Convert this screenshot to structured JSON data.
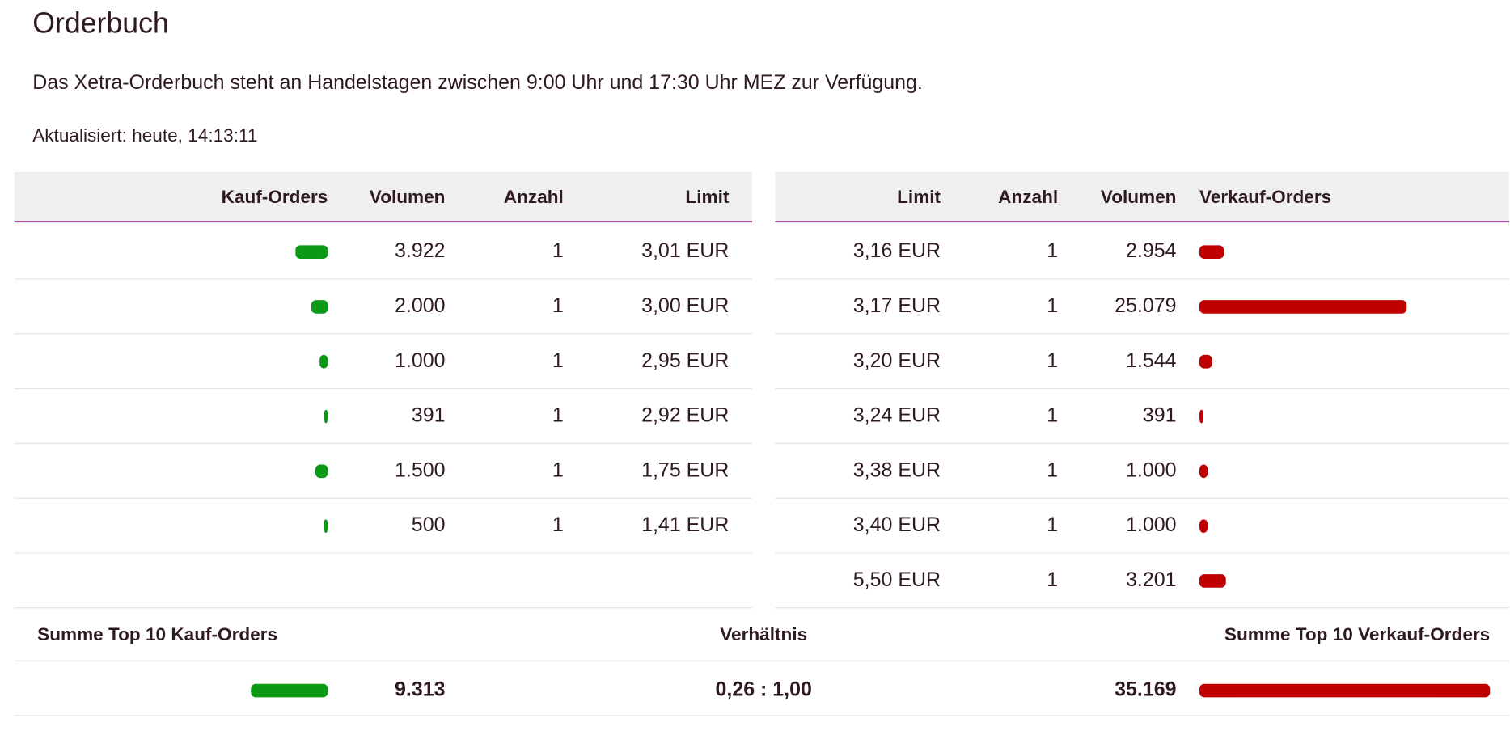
{
  "title": "Orderbuch",
  "description": "Das Xetra-Orderbuch steht an Handelstagen zwischen 9:00 Uhr und 17:30 Uhr MEZ zur Verfügung.",
  "updated": "Aktualisiert: heute, 14:13:11",
  "buy_table": {
    "columns": [
      "Kauf-Orders",
      "Volumen",
      "Anzahl",
      "Limit"
    ],
    "rows": [
      {
        "volume": {
          "value": 3922,
          "label": "3.922"
        },
        "count": 1,
        "limit": "3,01 EUR"
      },
      {
        "volume": {
          "value": 2000,
          "label": "2.000"
        },
        "count": 1,
        "limit": "3,00 EUR"
      },
      {
        "volume": {
          "value": 1000,
          "label": "1.000"
        },
        "count": 1,
        "limit": "2,95 EUR"
      },
      {
        "volume": 391,
        "count": 1,
        "limit": "2,92 EUR"
      },
      {
        "volume": {
          "value": 1500,
          "label": "1.500"
        },
        "count": 1,
        "limit": "1,75 EUR"
      },
      {
        "volume": 500,
        "count": 1,
        "limit": "1,41 EUR"
      }
    ]
  },
  "sell_table": {
    "columns": [
      "Limit",
      "Anzahl",
      "Volumen",
      "Verkauf-Orders"
    ],
    "rows": [
      {
        "limit": "3,16 EUR",
        "count": 1,
        "volume": {
          "value": 2954,
          "label": "2.954"
        }
      },
      {
        "limit": "3,17 EUR",
        "count": 1,
        "volume": {
          "value": 25079,
          "label": "25.079"
        }
      },
      {
        "limit": "3,20 EUR",
        "count": 1,
        "volume": {
          "value": 1544,
          "label": "1.544"
        }
      },
      {
        "limit": "3,24 EUR",
        "count": 1,
        "volume": 391
      },
      {
        "limit": "3,38 EUR",
        "count": 1,
        "volume": {
          "value": 1000,
          "label": "1.000"
        }
      },
      {
        "limit": "3,40 EUR",
        "count": 1,
        "volume": {
          "value": 1000,
          "label": "1.000"
        }
      },
      {
        "limit": "5,50 EUR",
        "count": 1,
        "volume": {
          "value": 3201,
          "label": "3.201"
        }
      }
    ]
  },
  "summary": {
    "buy_label": "Summe Top 10 Kauf-Orders",
    "ratio_label": "Verhältnis",
    "sell_label": "Summe Top 10 Verkauf-Orders",
    "buy_total": {
      "value": 9313,
      "label": "9.313"
    },
    "ratio": "0,26 : 1,00",
    "sell_total": {
      "value": 35169,
      "label": "35.169"
    }
  }
}
